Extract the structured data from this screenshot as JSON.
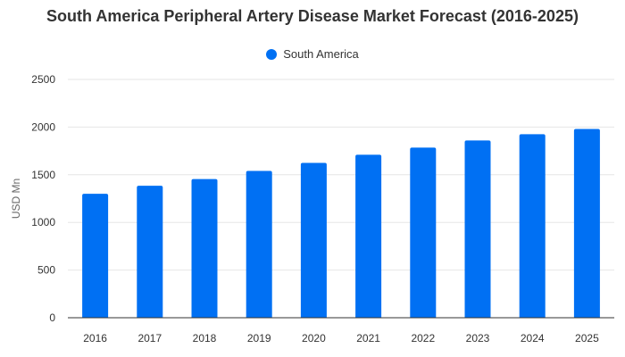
{
  "chart_data": {
    "type": "bar",
    "title": "South America Peripheral Artery Disease Market Forecast (2016-2025)",
    "xlabel": "",
    "ylabel": "USD Mn",
    "categories": [
      "2016",
      "2017",
      "2018",
      "2019",
      "2020",
      "2021",
      "2022",
      "2023",
      "2024",
      "2025"
    ],
    "series": [
      {
        "name": "South America",
        "values": [
          1300,
          1385,
          1455,
          1540,
          1625,
          1710,
          1785,
          1860,
          1925,
          1980
        ],
        "color": "#0070F3"
      }
    ],
    "ylim": [
      0,
      2500
    ],
    "yticks": [
      "0",
      "500",
      "1000",
      "1500",
      "2000",
      "2500"
    ],
    "grid": true,
    "legend_position": "top-center"
  }
}
